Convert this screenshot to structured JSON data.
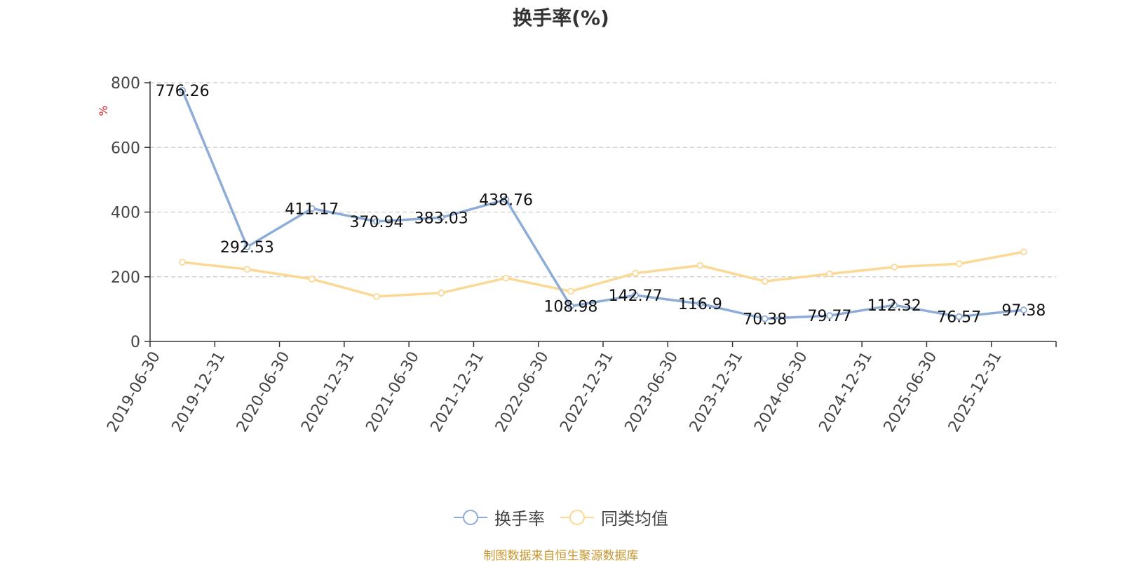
{
  "chart_data": {
    "type": "line",
    "title": "换手率(%)",
    "ylabel": "%",
    "xlabel": "",
    "ylim": [
      0,
      800
    ],
    "yticks": [
      0,
      200,
      400,
      600,
      800
    ],
    "grid": true,
    "legend_position": "bottom-center",
    "categories": [
      "2019-06-30",
      "2019-12-31",
      "2020-06-30",
      "2020-12-31",
      "2021-06-30",
      "2021-12-31",
      "2022-06-30",
      "2022-12-31",
      "2023-06-30",
      "2023-12-31",
      "2024-06-30",
      "2024-12-31",
      "2025-06-30",
      "2025-12-31"
    ],
    "series": [
      {
        "name": "换手率",
        "color": "#8eacd8",
        "values": [
          776.26,
          292.53,
          411.17,
          370.94,
          383.03,
          438.76,
          108.98,
          142.77,
          116.9,
          70.38,
          79.77,
          112.32,
          76.57,
          97.38
        ],
        "data_labels": [
          "776.26",
          "292.53",
          "411.17",
          "370.94",
          "383.03",
          "438.76",
          "108.98",
          "142.77",
          "116.9",
          "70.38",
          "79.77",
          "112.32",
          "76.57",
          "97.38"
        ]
      },
      {
        "name": "同类均值",
        "color": "#fcd895",
        "values": [
          245,
          223,
          193,
          139,
          150,
          196,
          155,
          211,
          235,
          186,
          209,
          230,
          240,
          277
        ]
      }
    ]
  },
  "source_note": "制图数据来自恒生聚源数据库",
  "colors": {
    "axis": "#333333",
    "grid": "#cccccc",
    "tick_text": "#444444",
    "ylabel_color": "#e02020"
  }
}
